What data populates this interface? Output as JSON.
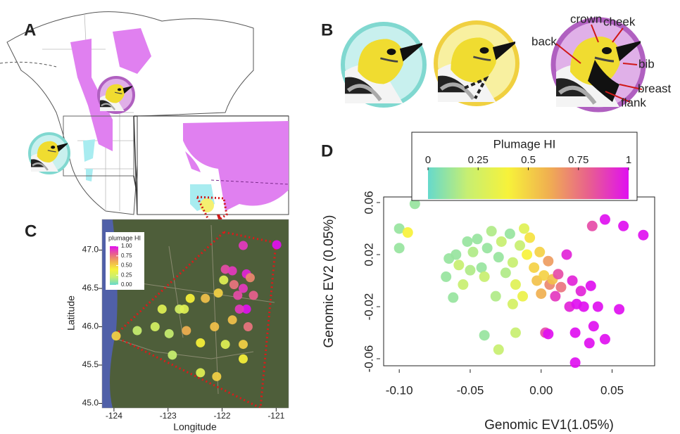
{
  "panels": {
    "a": {
      "label": "A"
    },
    "b": {
      "label": "B",
      "annotations": {
        "crown": "crown",
        "cheek": "cheek",
        "back": "back",
        "bib": "bib",
        "breast": "breast",
        "flank": "flank"
      }
    }
  },
  "chart_data": [
    {
      "type": "scatter",
      "panel_label": "C",
      "xlabel": "Longitude",
      "ylabel": "Latitude",
      "legend_title": "plumage HI",
      "xlim": [
        -124.22,
        -120.77
      ],
      "ylim": [
        44.94,
        47.4
      ],
      "xticks": [
        -124,
        -123,
        -122,
        -121
      ],
      "yticks": [
        {
          "value": 45,
          "label": "45.0"
        },
        45.5,
        {
          "value": 46,
          "label": "46.0"
        },
        46.5,
        {
          "value": 47,
          "label": "47.0"
        }
      ],
      "colorbar_ticks": [
        {
          "value": 1,
          "label": "1.00"
        },
        {
          "value": 0.75,
          "label": "0.75"
        },
        {
          "value": 0.5,
          "label": "0.50"
        },
        {
          "value": 0.25,
          "label": "0.25"
        },
        {
          "value": 0,
          "label": "0.00"
        }
      ],
      "colormap": [
        "#66d9cc",
        "#c8ef70",
        "#f7f23a",
        "#f0b050",
        "#e8608e",
        "#e010f0"
      ],
      "series": [
        {
          "x": [
            -120.99,
            -121.61,
            -121.94,
            -121.81,
            -121.55,
            -121.48,
            -121.97,
            -121.78,
            -121.61,
            -121.42,
            -121.71,
            -122.07,
            -122.31,
            -122.59,
            -122.79,
            -123.11,
            -122.7,
            -121.55,
            -121.68,
            -121.81,
            -121.52,
            -122.14,
            -122.66,
            -123.24,
            -123.57,
            -122.98,
            -122.4,
            -121.94,
            -121.61,
            -121.61,
            -122.4,
            -122.1,
            -122.92,
            -123.96
          ],
          "values": [
            47.07,
            47.06,
            46.75,
            46.73,
            46.69,
            46.64,
            46.61,
            46.55,
            46.5,
            46.41,
            46.41,
            46.44,
            46.37,
            46.37,
            46.23,
            46.23,
            46.23,
            46.23,
            46.23,
            46.09,
            46.0,
            46.0,
            45.95,
            46.0,
            45.95,
            45.91,
            45.79,
            45.77,
            45.77,
            45.58,
            45.4,
            45.35,
            45.63,
            45.88
          ],
          "hi": [
            1,
            0.9,
            0.85,
            0.9,
            0.95,
            0.7,
            0.3,
            0.75,
            0.9,
            0.8,
            0.85,
            0.5,
            0.55,
            0.4,
            0.25,
            0.3,
            0.3,
            1,
            0.9,
            0.55,
            0.75,
            0.55,
            0.6,
            0.25,
            0.2,
            0.2,
            0.4,
            0.3,
            0.5,
            0.4,
            0.3,
            0.5,
            0.2,
            0.5
          ]
        }
      ]
    },
    {
      "type": "scatter",
      "panel_label": "D",
      "xlabel": "Genomic EV1(1.05%)",
      "ylabel": "Genomic EV2 (0.05%)",
      "legend_title": "Plumage HI",
      "xlim": [
        -0.111,
        0.08
      ],
      "ylim": [
        -0.0654,
        0.0643
      ],
      "xticks": [
        {
          "value": -0.1,
          "label": "-0.10"
        },
        -0.05,
        {
          "value": 0,
          "label": "0.00"
        },
        0.05
      ],
      "yticks": [
        -0.06,
        -0.02,
        0.02,
        0.06
      ],
      "colorbar_ticks": [
        0,
        0.25,
        0.5,
        0.75,
        1
      ],
      "colormap": [
        "#66d9cc",
        "#c8ef70",
        "#f7f23a",
        "#f0b050",
        "#e8608e",
        "#e010f0"
      ],
      "series": [
        {
          "x": [
            -0.1,
            -0.089,
            -0.094,
            -0.1,
            -0.067,
            -0.06,
            -0.058,
            -0.052,
            -0.048,
            -0.045,
            -0.042,
            -0.04,
            -0.038,
            -0.035,
            -0.03,
            -0.028,
            -0.025,
            -0.022,
            -0.02,
            -0.018,
            -0.015,
            -0.012,
            -0.01,
            -0.008,
            -0.005,
            -0.003,
            -0.001,
            0.0,
            0.002,
            0.005,
            0.006,
            0.008,
            0.01,
            0.012,
            0.014,
            0.018,
            0.02,
            0.022,
            0.025,
            0.028,
            0.03,
            0.035,
            0.036,
            0.04,
            0.045,
            0.058,
            0.072,
            0.055,
            0.037,
            0.024,
            0.034,
            0.045,
            0.024,
            0.003,
            0.005,
            -0.04,
            -0.03,
            -0.018,
            -0.062,
            -0.055,
            -0.032,
            -0.02,
            -0.013,
            -0.05,
            -0.065
          ],
          "values": [
            0.04,
            0.059,
            0.037,
            0.025,
            0.003,
            0.02,
            0.012,
            0.03,
            0.022,
            0.032,
            0.01,
            0.003,
            0.025,
            0.038,
            0.018,
            0.03,
            0.006,
            0.036,
            0.014,
            -0.003,
            0.027,
            0.04,
            0.02,
            0.033,
            0.01,
            0.0,
            0.022,
            -0.01,
            0.004,
            0.015,
            -0.003,
            0.001,
            -0.012,
            0.005,
            -0.005,
            0.02,
            -0.02,
            0.0,
            -0.018,
            -0.008,
            -0.02,
            -0.004,
            0.042,
            -0.02,
            0.047,
            0.042,
            0.035,
            -0.022,
            -0.035,
            -0.04,
            -0.048,
            -0.045,
            -0.063,
            -0.04,
            -0.041,
            -0.042,
            -0.053,
            -0.04,
            -0.013,
            -0.003,
            -0.012,
            -0.018,
            -0.012,
            0.008,
            0.017
          ],
          "hi": [
            0.1,
            0.1,
            0.4,
            0.1,
            0.1,
            0.1,
            0.2,
            0.1,
            0.15,
            0.1,
            0.1,
            0.2,
            0.1,
            0.15,
            0.1,
            0.2,
            0.15,
            0.1,
            0.2,
            0.3,
            0.2,
            0.3,
            0.4,
            0.45,
            0.5,
            0.55,
            0.5,
            0.6,
            0.5,
            0.65,
            0.7,
            0.55,
            0.9,
            0.85,
            0.75,
            0.95,
            0.95,
            0.95,
            1,
            0.95,
            1,
            1,
            0.85,
            1,
            1,
            1,
            1,
            1,
            1,
            1,
            1,
            1,
            1,
            0.85,
            1,
            0.1,
            0.2,
            0.2,
            0.1,
            0.2,
            0.15,
            0.25,
            0.35,
            0.15,
            0.1
          ]
        }
      ]
    }
  ]
}
